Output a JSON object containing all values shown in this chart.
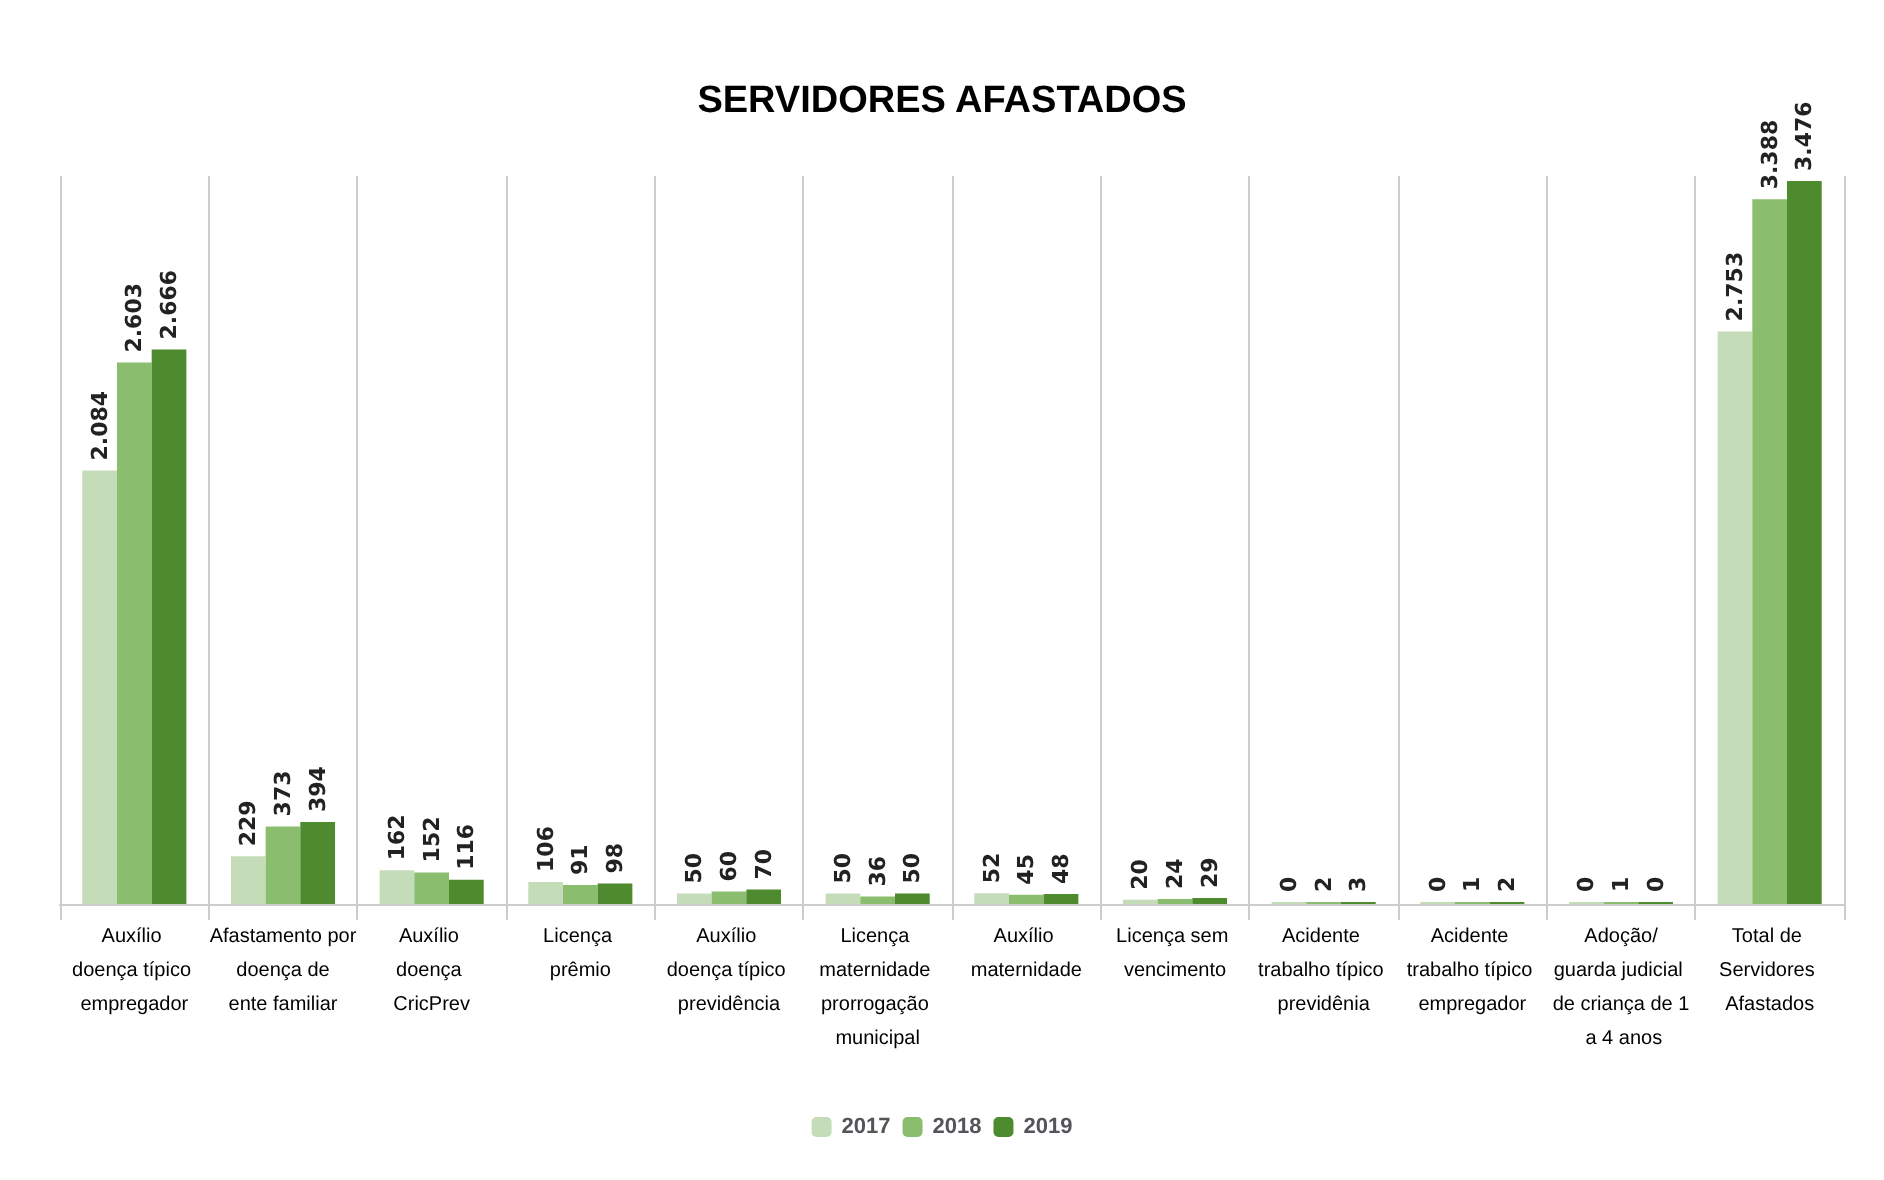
{
  "chart_data": {
    "type": "bar",
    "title": "SERVIDORES AFASTADOS",
    "categories": [
      "Auxílio doença típico empregador",
      "Afastamento por doença de ente familiar",
      "Auxílio doença CricPrev",
      "Licença prêmio",
      "Auxílio doença típico previdência",
      "Licença maternidade prorrogação municipal",
      "Auxílio maternidade",
      "Licença sem vencimento",
      "Acidente trabalho típico previdênia",
      "Acidente trabalho típico empregador",
      "Adoção/guarda judicial de criança de 1 a 4 anos",
      "Total de Servidores Afastados"
    ],
    "series": [
      {
        "name": "2017",
        "color": "#c5dcb9",
        "values": [
          2084,
          229,
          162,
          106,
          50,
          50,
          52,
          20,
          0,
          0,
          0,
          2753
        ],
        "value_labels": [
          "2.084",
          "229",
          "162",
          "106",
          "50",
          "50",
          "52",
          "20",
          "0",
          "0",
          "0",
          "2.753"
        ]
      },
      {
        "name": "2018",
        "color": "#8bbd6e",
        "values": [
          2603,
          373,
          152,
          91,
          60,
          36,
          45,
          24,
          2,
          1,
          1,
          3388
        ],
        "value_labels": [
          "2.603",
          "373",
          "152",
          "91",
          "60",
          "36",
          "45",
          "24",
          "2",
          "1",
          "1",
          "3.388"
        ]
      },
      {
        "name": "2019",
        "color": "#4e8a2e",
        "values": [
          2666,
          394,
          116,
          98,
          70,
          50,
          48,
          29,
          3,
          2,
          0,
          3476
        ],
        "value_labels": [
          "2.666",
          "394",
          "116",
          "98",
          "70",
          "50",
          "48",
          "29",
          "3",
          "2",
          "0",
          "3.476"
        ]
      }
    ],
    "grid": "x",
    "legend": "bottom",
    "tick_labels": "x"
  }
}
